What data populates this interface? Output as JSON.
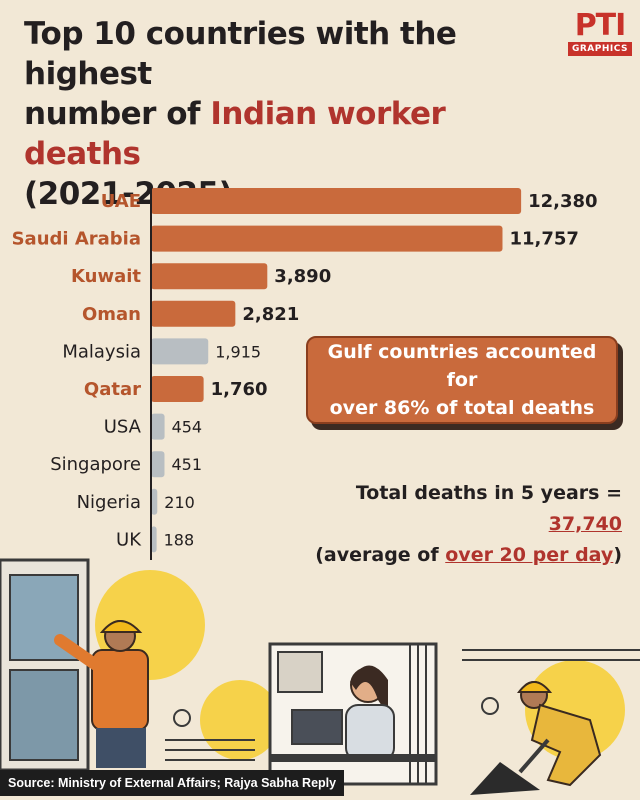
{
  "title": {
    "line1": "Top 10 countries with the highest",
    "line2_prefix": "number of ",
    "line2_highlight": "Indian worker deaths",
    "line3": "(2021-2025)"
  },
  "logo": {
    "mark": "PTI",
    "sub": "GRAPHICS"
  },
  "colors": {
    "gulf_bar": "#c96a3c",
    "other_bar": "#b8bec2",
    "highlight": "#b0342d",
    "background": "#f2e8d6"
  },
  "chart_data": {
    "type": "bar",
    "orientation": "horizontal",
    "title": "Top 10 countries with the highest number of Indian worker deaths (2021-2025)",
    "categories": [
      "UAE",
      "Saudi Arabia",
      "Kuwait",
      "Oman",
      "Malaysia",
      "Qatar",
      "USA",
      "Singapore",
      "Nigeria",
      "UK"
    ],
    "values": [
      12380,
      11757,
      3890,
      2821,
      1915,
      1760,
      454,
      451,
      210,
      188
    ],
    "value_labels": [
      "12,380",
      "11,757",
      "3,890",
      "2,821",
      "1,915",
      "1,760",
      "454",
      "451",
      "210",
      "188"
    ],
    "gulf": [
      true,
      true,
      true,
      true,
      false,
      true,
      false,
      false,
      false,
      false
    ],
    "xlim": [
      0,
      13000
    ],
    "grid": false
  },
  "callout": {
    "line1": "Gulf countries accounted for",
    "line2": "over 86% of total deaths"
  },
  "totals": {
    "prefix": "Total deaths in 5 years = ",
    "value": "37,740",
    "avg_prefix": "(average of ",
    "avg_value": "over 20 per day",
    "avg_suffix": ")"
  },
  "source": "Source: Ministry of External Affairs; Rajya Sabha Reply"
}
